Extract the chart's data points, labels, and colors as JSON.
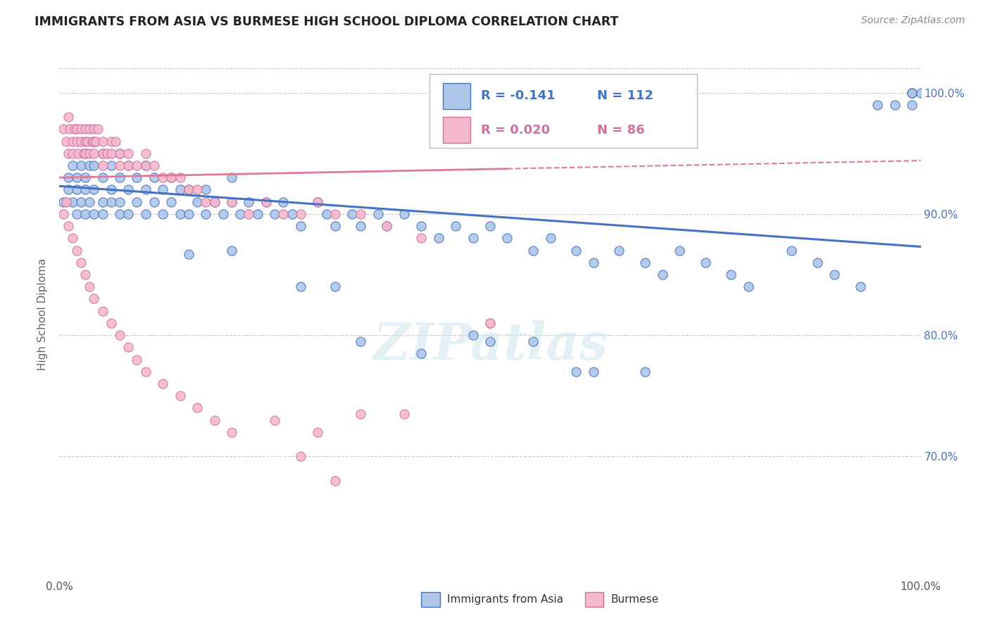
{
  "title": "IMMIGRANTS FROM ASIA VS BURMESE HIGH SCHOOL DIPLOMA CORRELATION CHART",
  "source": "Source: ZipAtlas.com",
  "ylabel": "High School Diploma",
  "ytick_labels": [
    "100.0%",
    "90.0%",
    "80.0%",
    "70.0%"
  ],
  "ytick_positions": [
    1.0,
    0.9,
    0.8,
    0.7
  ],
  "legend_asia": "Immigrants from Asia",
  "legend_burmese": "Burmese",
  "r_asia": "-0.141",
  "n_asia": "112",
  "r_burmese": "0.020",
  "n_burmese": "86",
  "color_asia_fill": "#aec6e8",
  "color_burmese_fill": "#f5b8cc",
  "color_asia_edge": "#4472c4",
  "color_burmese_edge": "#d070a0",
  "color_asia_line": "#4472c4",
  "color_burmese_line": "#e07898",
  "background_color": "#ffffff",
  "grid_color": "#cccccc",
  "title_color": "#222222",
  "source_color": "#888888",
  "asia_x": [
    0.005,
    0.01,
    0.01,
    0.015,
    0.015,
    0.02,
    0.02,
    0.02,
    0.025,
    0.025,
    0.03,
    0.03,
    0.03,
    0.03,
    0.035,
    0.035,
    0.04,
    0.04,
    0.04,
    0.04,
    0.05,
    0.05,
    0.05,
    0.05,
    0.06,
    0.06,
    0.06,
    0.07,
    0.07,
    0.07,
    0.07,
    0.08,
    0.08,
    0.08,
    0.09,
    0.09,
    0.1,
    0.1,
    0.1,
    0.11,
    0.11,
    0.12,
    0.12,
    0.13,
    0.13,
    0.14,
    0.14,
    0.15,
    0.15,
    0.16,
    0.17,
    0.17,
    0.18,
    0.19,
    0.2,
    0.2,
    0.21,
    0.22,
    0.23,
    0.24,
    0.25,
    0.26,
    0.27,
    0.28,
    0.3,
    0.31,
    0.32,
    0.34,
    0.35,
    0.37,
    0.38,
    0.4,
    0.42,
    0.44,
    0.46,
    0.48,
    0.5,
    0.52,
    0.55,
    0.57,
    0.6,
    0.62,
    0.65,
    0.68,
    0.7,
    0.72,
    0.75,
    0.78,
    0.8,
    0.85,
    0.88,
    0.9,
    0.93,
    0.95,
    0.97,
    0.99,
    0.99,
    0.99,
    0.99,
    1.0,
    0.55,
    0.62,
    0.48,
    0.35,
    0.5,
    0.42,
    0.6,
    0.68,
    0.32,
    0.28,
    0.2,
    0.15
  ],
  "asia_y": [
    0.91,
    0.93,
    0.92,
    0.94,
    0.91,
    0.93,
    0.92,
    0.9,
    0.94,
    0.91,
    0.95,
    0.93,
    0.92,
    0.9,
    0.94,
    0.91,
    0.96,
    0.94,
    0.92,
    0.9,
    0.95,
    0.93,
    0.91,
    0.9,
    0.94,
    0.92,
    0.91,
    0.95,
    0.93,
    0.91,
    0.9,
    0.94,
    0.92,
    0.9,
    0.93,
    0.91,
    0.94,
    0.92,
    0.9,
    0.93,
    0.91,
    0.92,
    0.9,
    0.93,
    0.91,
    0.92,
    0.9,
    0.92,
    0.9,
    0.91,
    0.92,
    0.9,
    0.91,
    0.9,
    0.93,
    0.91,
    0.9,
    0.91,
    0.9,
    0.91,
    0.9,
    0.91,
    0.9,
    0.89,
    0.91,
    0.9,
    0.89,
    0.9,
    0.89,
    0.9,
    0.89,
    0.9,
    0.89,
    0.88,
    0.89,
    0.88,
    0.89,
    0.88,
    0.87,
    0.88,
    0.87,
    0.86,
    0.87,
    0.86,
    0.85,
    0.87,
    0.86,
    0.85,
    0.84,
    0.87,
    0.86,
    0.85,
    0.84,
    0.99,
    0.99,
    1.0,
    0.99,
    1.0,
    1.0,
    1.0,
    0.795,
    0.77,
    0.8,
    0.795,
    0.795,
    0.785,
    0.77,
    0.77,
    0.84,
    0.84,
    0.87,
    0.867
  ],
  "burmese_x": [
    0.005,
    0.008,
    0.01,
    0.01,
    0.012,
    0.015,
    0.015,
    0.018,
    0.02,
    0.02,
    0.022,
    0.025,
    0.025,
    0.028,
    0.03,
    0.03,
    0.03,
    0.032,
    0.035,
    0.035,
    0.038,
    0.04,
    0.04,
    0.04,
    0.042,
    0.045,
    0.05,
    0.05,
    0.05,
    0.055,
    0.06,
    0.06,
    0.065,
    0.07,
    0.07,
    0.08,
    0.08,
    0.09,
    0.1,
    0.1,
    0.11,
    0.12,
    0.13,
    0.14,
    0.15,
    0.16,
    0.17,
    0.18,
    0.2,
    0.22,
    0.24,
    0.26,
    0.28,
    0.3,
    0.32,
    0.35,
    0.38,
    0.42,
    0.5,
    0.5,
    0.005,
    0.008,
    0.01,
    0.015,
    0.02,
    0.025,
    0.03,
    0.035,
    0.04,
    0.05,
    0.06,
    0.07,
    0.08,
    0.09,
    0.1,
    0.12,
    0.14,
    0.16,
    0.18,
    0.2,
    0.25,
    0.3,
    0.35,
    0.4,
    0.28,
    0.32
  ],
  "burmese_y": [
    0.97,
    0.96,
    0.98,
    0.95,
    0.97,
    0.96,
    0.95,
    0.97,
    0.97,
    0.96,
    0.95,
    0.97,
    0.96,
    0.95,
    0.97,
    0.96,
    0.95,
    0.96,
    0.97,
    0.95,
    0.96,
    0.97,
    0.96,
    0.95,
    0.96,
    0.97,
    0.96,
    0.95,
    0.94,
    0.95,
    0.96,
    0.95,
    0.96,
    0.95,
    0.94,
    0.95,
    0.94,
    0.94,
    0.95,
    0.94,
    0.94,
    0.93,
    0.93,
    0.93,
    0.92,
    0.92,
    0.91,
    0.91,
    0.91,
    0.9,
    0.91,
    0.9,
    0.9,
    0.91,
    0.9,
    0.9,
    0.89,
    0.88,
    0.81,
    0.81,
    0.9,
    0.91,
    0.89,
    0.88,
    0.87,
    0.86,
    0.85,
    0.84,
    0.83,
    0.82,
    0.81,
    0.8,
    0.79,
    0.78,
    0.77,
    0.76,
    0.75,
    0.74,
    0.73,
    0.72,
    0.73,
    0.72,
    0.735,
    0.735,
    0.7,
    0.68
  ]
}
